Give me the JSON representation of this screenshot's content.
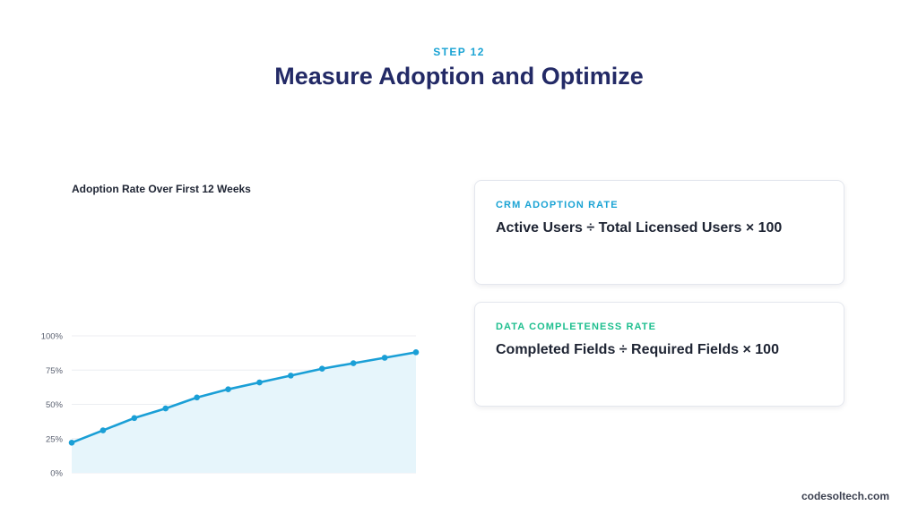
{
  "header": {
    "step": "STEP 12",
    "title": "Measure Adoption and Optimize"
  },
  "chart_data": {
    "type": "area",
    "title": "Adoption Rate Over First 12 Weeks",
    "xlabel": "",
    "ylabel": "",
    "x": [
      1,
      2,
      3,
      4,
      5,
      6,
      7,
      8,
      9,
      10,
      11,
      12
    ],
    "series": [
      {
        "values": [
          22,
          31,
          40,
          47,
          55,
          61,
          66,
          71,
          76,
          80,
          84,
          88
        ]
      }
    ],
    "yticks": [
      "0%",
      "25%",
      "50%",
      "75%",
      "100%"
    ],
    "ylim": [
      0,
      100
    ],
    "grid": true,
    "line_color": "#1a9fd6",
    "fill_color": "#e6f5fb"
  },
  "cards": [
    {
      "label": "CRM ADOPTION RATE",
      "formula": "Active Users ÷ Total Licensed Users × 100",
      "label_color": "#1aa3d4"
    },
    {
      "label": "DATA COMPLETENESS RATE",
      "formula": "Completed Fields ÷ Required Fields × 100",
      "label_color": "#1fbf8f"
    }
  ],
  "footer": {
    "brand": "codesoltech.com"
  }
}
